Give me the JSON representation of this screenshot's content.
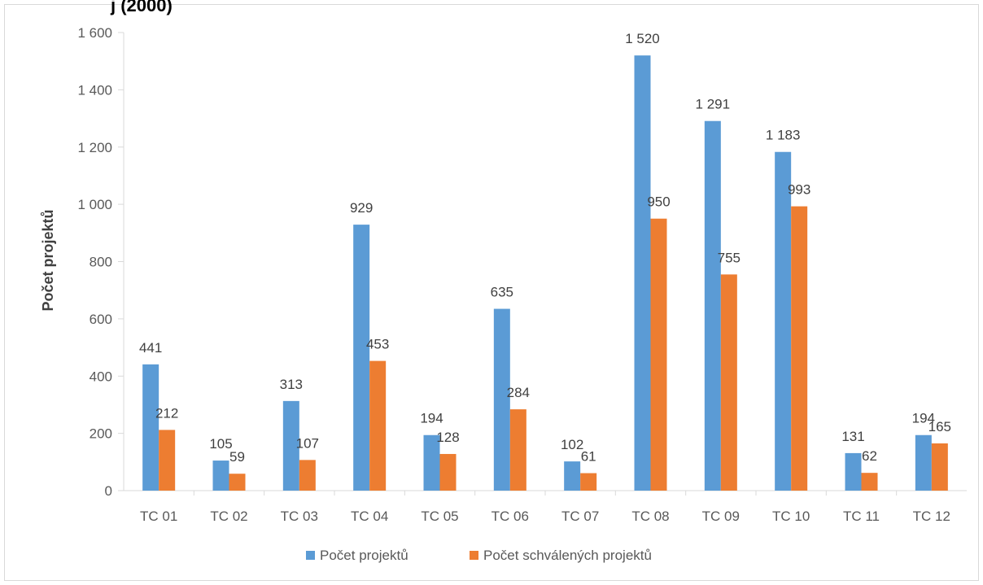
{
  "chart_data": {
    "type": "bar",
    "title_fragment": "j (2000)",
    "ylabel": "Počet projektů",
    "xlabel": "",
    "ylim": [
      0,
      1600
    ],
    "yticks": [
      0,
      200,
      400,
      600,
      800,
      1000,
      1200,
      1400,
      1600
    ],
    "ytick_labels": [
      "0",
      "200",
      "400",
      "600",
      "800",
      "1 000",
      "1 200",
      "1 400",
      "1 600"
    ],
    "categories": [
      "TC 01",
      "TC 02",
      "TC 03",
      "TC 04",
      "TC 05",
      "TC 06",
      "TC 07",
      "TC 08",
      "TC 09",
      "TC 10",
      "TC 11",
      "TC 12"
    ],
    "series": [
      {
        "name": "Počet projektů",
        "color": "#5b9bd5",
        "values": [
          441,
          105,
          313,
          929,
          194,
          635,
          102,
          1520,
          1291,
          1183,
          131,
          194
        ],
        "labels": [
          "441",
          "105",
          "313",
          "929",
          "194",
          "635",
          "102",
          "1 520",
          "1 291",
          "1 183",
          "131",
          "194"
        ]
      },
      {
        "name": "Počet schválených projektů",
        "color": "#ed7d31",
        "values": [
          212,
          59,
          107,
          453,
          128,
          284,
          61,
          950,
          755,
          993,
          62,
          165
        ],
        "labels": [
          "212",
          "59",
          "107",
          "453",
          "128",
          "284",
          "61",
          "950",
          "755",
          "993",
          "62",
          "165"
        ]
      }
    ],
    "grid": false,
    "legend_position": "bottom"
  }
}
